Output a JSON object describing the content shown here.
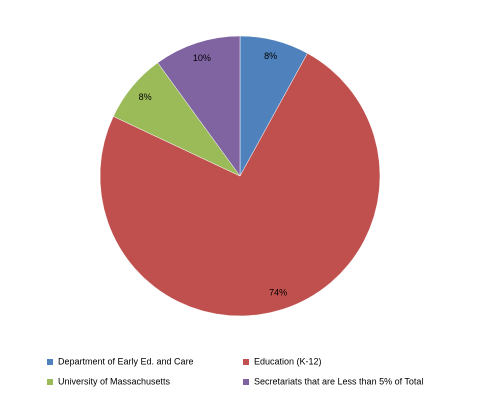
{
  "chart_data": {
    "type": "pie",
    "categories": [
      "Department of Early Ed. and Care",
      "Education (K-12)",
      "University of Massachusetts",
      "Secretariats that are Less than 5% of Total"
    ],
    "values": [
      8,
      74,
      8,
      10
    ],
    "value_labels": [
      "8%",
      "74%",
      "8%",
      "10%"
    ],
    "colors": [
      "#4f81bd",
      "#c0504d",
      "#9bbb59",
      "#8064a2"
    ],
    "legend": "bottom"
  }
}
